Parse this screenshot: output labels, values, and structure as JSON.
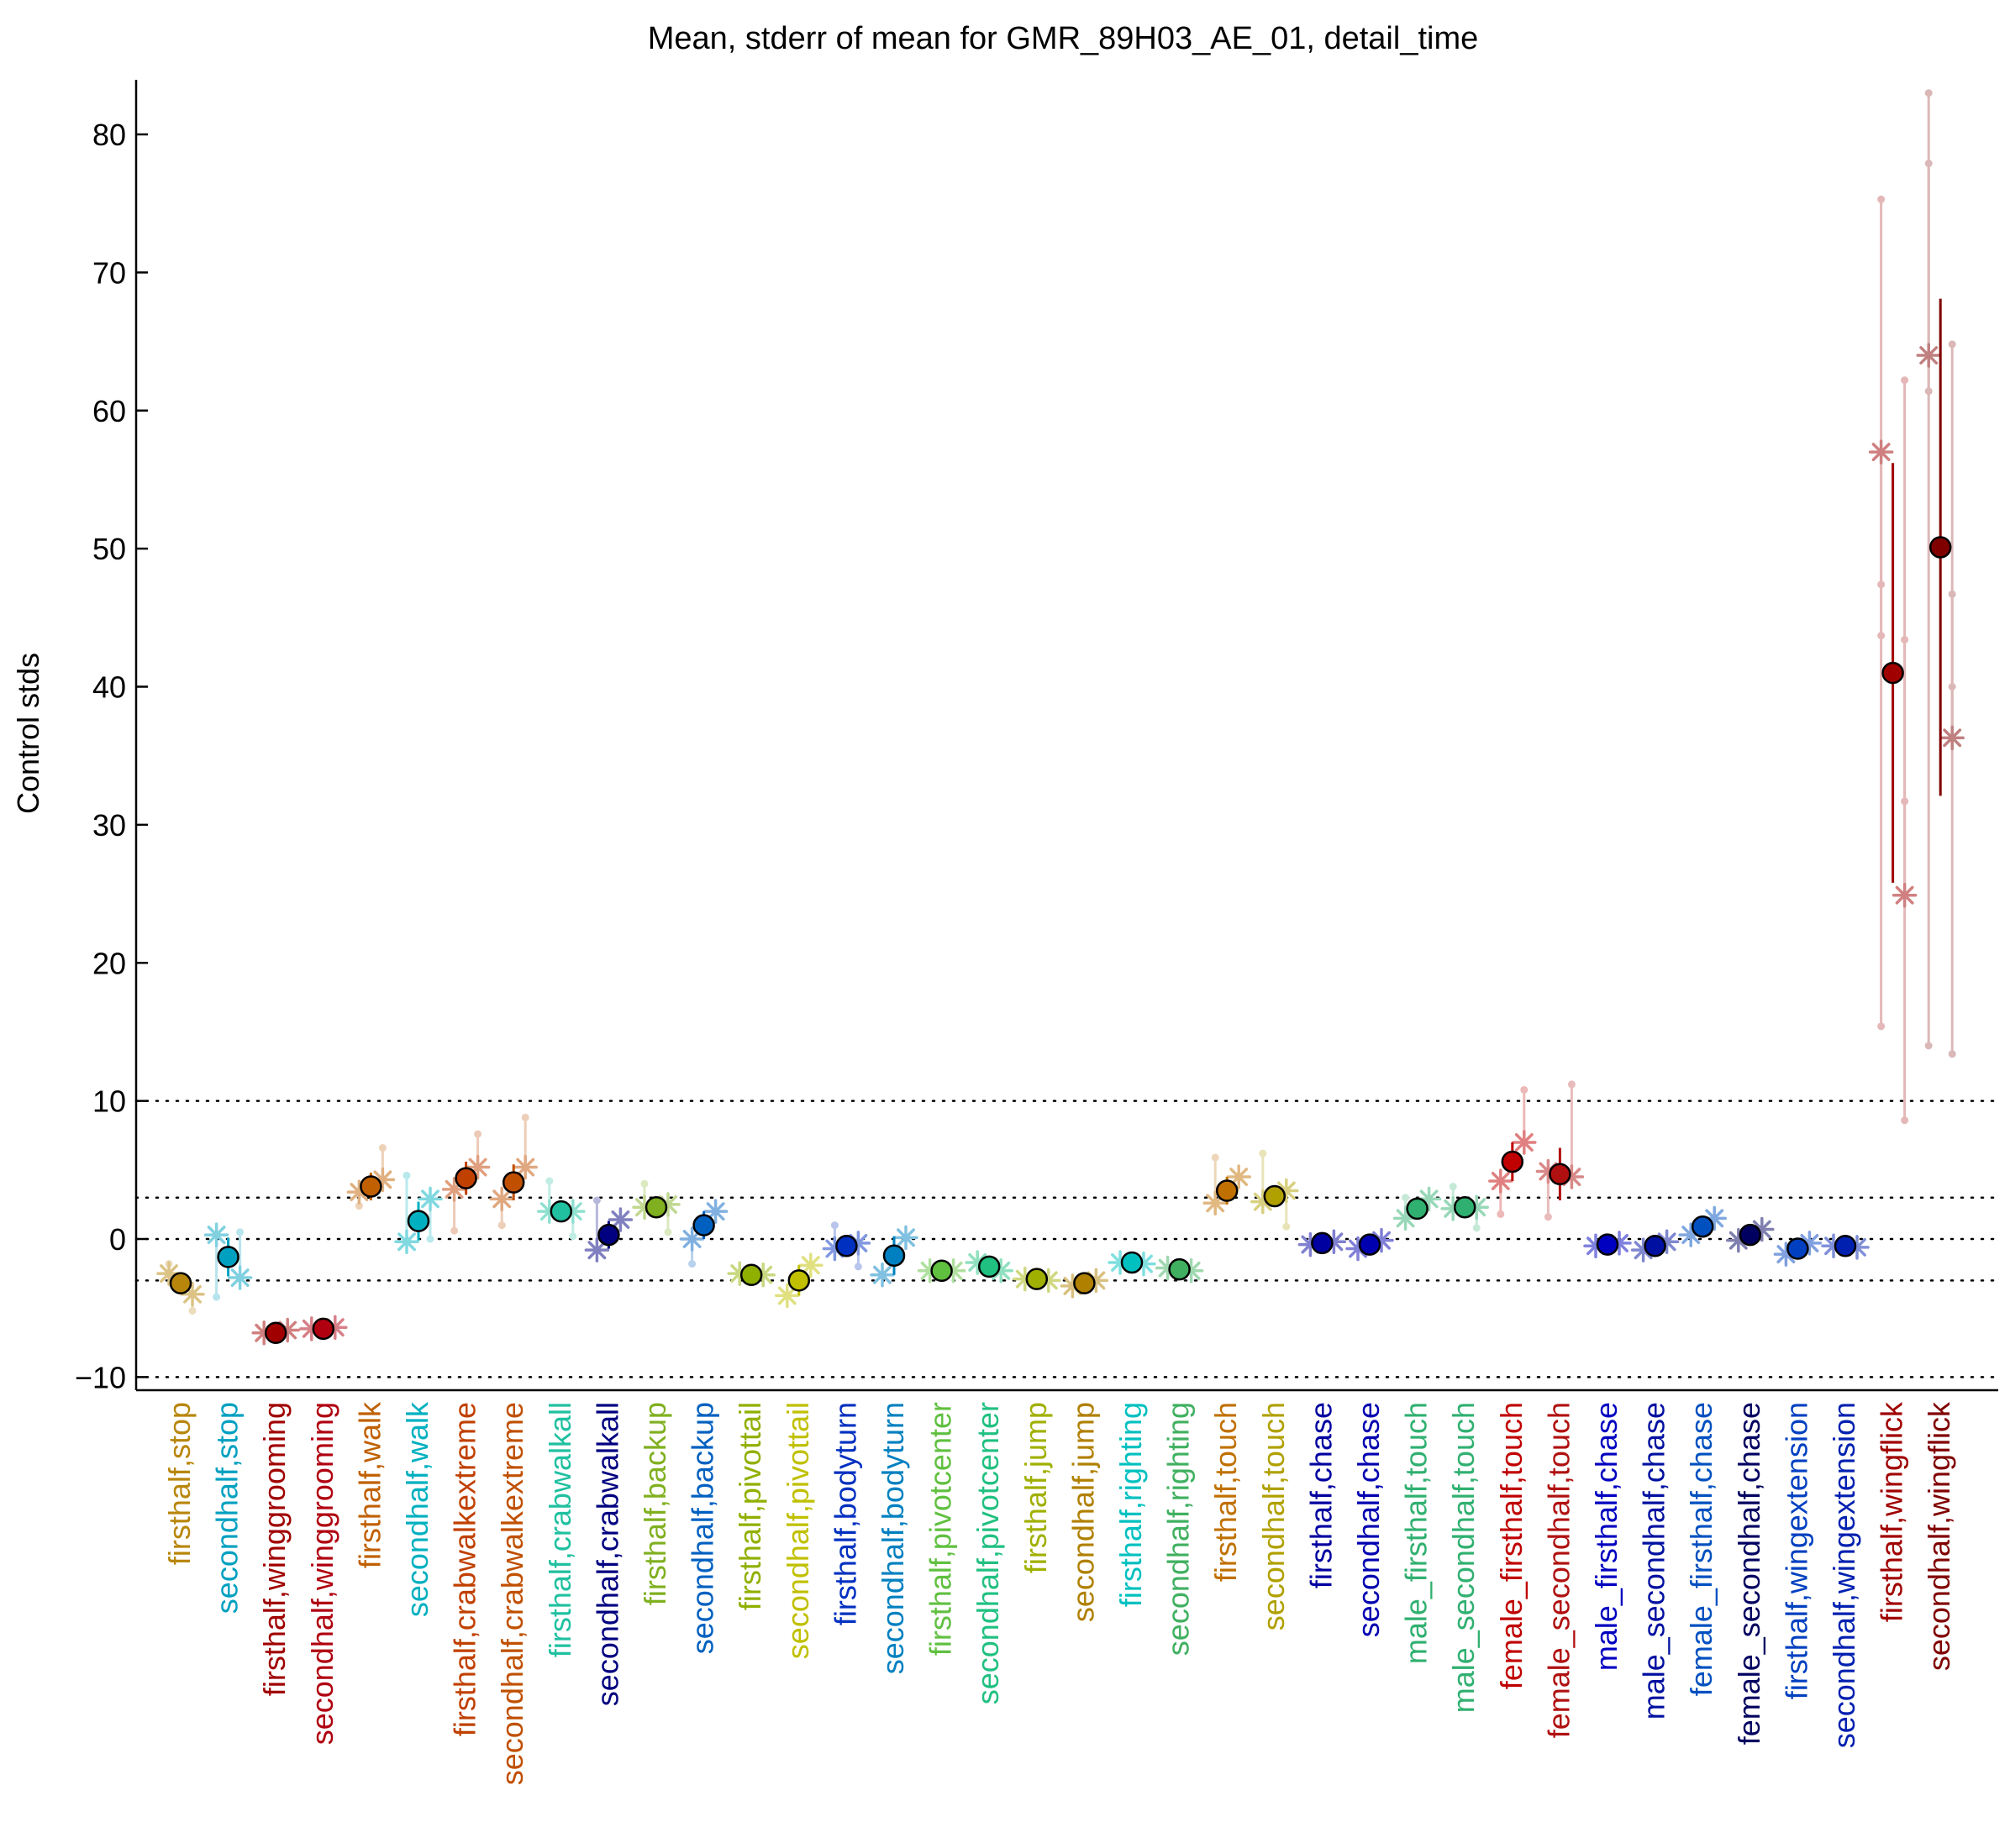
{
  "chart_data": {
    "type": "scatter",
    "title": "Mean, stderr of mean for GMR_89H03_AE_01, detail_time",
    "ylabel": "Control stds",
    "xlabel": "",
    "ylim": [
      -11,
      84
    ],
    "yticks": [
      -10,
      0,
      10,
      20,
      30,
      40,
      50,
      60,
      70,
      80
    ],
    "ytick_labels": [
      "−10",
      "0",
      "10",
      "20",
      "30",
      "40",
      "50",
      "60",
      "70",
      "80"
    ],
    "reference_lines": [
      -10,
      -3,
      0,
      3,
      10
    ],
    "grid": false,
    "legend": "none",
    "categories": [
      {
        "label": "firsthalf,stop",
        "color": "#b8860b",
        "mean": -3.2,
        "sem": 0.6,
        "stars": [
          -2.5,
          -4.0
        ],
        "dots": [
          -1.8,
          -5.2
        ]
      },
      {
        "label": "secondhalf,stop",
        "color": "#00a0c0",
        "mean": -1.3,
        "sem": 1.4,
        "stars": [
          0.3,
          -2.8
        ],
        "dots": [
          -4.2,
          0.5
        ]
      },
      {
        "label": "firsthalf,winggrooming",
        "color": "#a00000",
        "mean": -6.8,
        "sem": 0.2,
        "stars": [
          -6.8,
          -6.6
        ],
        "dots": []
      },
      {
        "label": "secondhalf,winggrooming",
        "color": "#b00010",
        "mean": -6.5,
        "sem": 0.2,
        "stars": [
          -6.5,
          -6.4
        ],
        "dots": []
      },
      {
        "label": "firsthalf,walk",
        "color": "#c06000",
        "mean": 3.8,
        "sem": 1.0,
        "stars": [
          3.4,
          4.3
        ],
        "dots": [
          2.4,
          6.6
        ]
      },
      {
        "label": "secondhalf,walk",
        "color": "#00b0c0",
        "mean": 1.3,
        "sem": 1.4,
        "stars": [
          -0.2,
          2.9
        ],
        "dots": [
          4.6,
          0.0
        ]
      },
      {
        "label": "firsthalf,crabwalkextreme",
        "color": "#c04000",
        "mean": 4.4,
        "sem": 1.2,
        "stars": [
          3.6,
          5.2
        ],
        "dots": [
          0.6,
          7.6
        ]
      },
      {
        "label": "secondhalf,crabwalkextreme",
        "color": "#c05000",
        "mean": 4.1,
        "sem": 1.3,
        "stars": [
          2.9,
          5.2
        ],
        "dots": [
          1.0,
          8.8
        ]
      },
      {
        "label": "firsthalf,crabwalkall",
        "color": "#20c0a0",
        "mean": 2.0,
        "sem": 0.3,
        "stars": [
          2.0,
          2.0
        ],
        "dots": [
          4.2,
          0.2
        ]
      },
      {
        "label": "secondhalf,crabwalkall",
        "color": "#000080",
        "mean": 0.3,
        "sem": 1.0,
        "stars": [
          -0.8,
          1.4
        ],
        "dots": [
          2.8
        ]
      },
      {
        "label": "firsthalf,backup",
        "color": "#80b020",
        "mean": 2.3,
        "sem": 0.3,
        "stars": [
          2.3,
          2.5
        ],
        "dots": [
          4.0,
          0.5
        ]
      },
      {
        "label": "secondhalf,backup",
        "color": "#0060c0",
        "mean": 1.0,
        "sem": 1.0,
        "stars": [
          0.0,
          2.0
        ],
        "dots": [
          -1.8
        ]
      },
      {
        "label": "firsthalf,pivottail",
        "color": "#90b000",
        "mean": -2.6,
        "sem": 0.1,
        "stars": [
          -2.5,
          -2.6
        ],
        "dots": []
      },
      {
        "label": "secondhalf,pivottail",
        "color": "#c0c000",
        "mean": -3.0,
        "sem": 1.1,
        "stars": [
          -4.1,
          -1.9
        ],
        "dots": []
      },
      {
        "label": "firsthalf,bodyturn",
        "color": "#0030c0",
        "mean": -0.5,
        "sem": 0.2,
        "stars": [
          -0.7,
          -0.3
        ],
        "dots": [
          1.0,
          -2.0
        ]
      },
      {
        "label": "secondhalf,bodyturn",
        "color": "#0080c0",
        "mean": -1.2,
        "sem": 1.4,
        "stars": [
          -2.6,
          0.1
        ],
        "dots": []
      },
      {
        "label": "firsthalf,pivotcenter",
        "color": "#60c040",
        "mean": -2.3,
        "sem": 0.1,
        "stars": [
          -2.3,
          -2.3
        ],
        "dots": []
      },
      {
        "label": "secondhalf,pivotcenter",
        "color": "#20c080",
        "mean": -2.0,
        "sem": 0.3,
        "stars": [
          -1.7,
          -2.3
        ],
        "dots": []
      },
      {
        "label": "firsthalf,jump",
        "color": "#a0b000",
        "mean": -2.9,
        "sem": 0.1,
        "stars": [
          -2.9,
          -3.0
        ],
        "dots": []
      },
      {
        "label": "secondhalf,jump",
        "color": "#b08000",
        "mean": -3.2,
        "sem": 0.2,
        "stars": [
          -3.4,
          -3.0
        ],
        "dots": []
      },
      {
        "label": "firsthalf,righting",
        "color": "#00c0c0",
        "mean": -1.7,
        "sem": 0.1,
        "stars": [
          -1.7,
          -1.8
        ],
        "dots": []
      },
      {
        "label": "secondhalf,righting",
        "color": "#40b060",
        "mean": -2.2,
        "sem": 0.1,
        "stars": [
          -2.1,
          -2.3
        ],
        "dots": []
      },
      {
        "label": "firsthalf,touch",
        "color": "#c07000",
        "mean": 3.5,
        "sem": 1.0,
        "stars": [
          2.6,
          4.5
        ],
        "dots": [
          5.9
        ]
      },
      {
        "label": "secondhalf,touch",
        "color": "#b0a000",
        "mean": 3.1,
        "sem": 0.4,
        "stars": [
          2.7,
          3.5
        ],
        "dots": [
          6.2,
          0.9
        ]
      },
      {
        "label": "firsthalf,chase",
        "color": "#0000a0",
        "mean": -0.3,
        "sem": 0.1,
        "stars": [
          -0.4,
          -0.2
        ],
        "dots": []
      },
      {
        "label": "secondhalf,chase",
        "color": "#0000b0",
        "mean": -0.4,
        "sem": 0.3,
        "stars": [
          -0.7,
          -0.1
        ],
        "dots": []
      },
      {
        "label": "male_firsthalf,touch",
        "color": "#30b070",
        "mean": 2.2,
        "sem": 0.8,
        "stars": [
          1.5,
          2.9
        ],
        "dots": [
          3.0
        ]
      },
      {
        "label": "male_secondhalf,touch",
        "color": "#30b070",
        "mean": 2.3,
        "sem": 0.1,
        "stars": [
          2.2,
          2.3
        ],
        "dots": [
          3.8,
          0.8
        ]
      },
      {
        "label": "female_firsthalf,touch",
        "color": "#c00000",
        "mean": 5.6,
        "sem": 1.4,
        "stars": [
          4.2,
          7.0
        ],
        "dots": [
          1.8,
          10.8
        ]
      },
      {
        "label": "female_secondhalf,touch",
        "color": "#b01010",
        "mean": 4.7,
        "sem": 1.9,
        "stars": [
          4.9,
          4.5
        ],
        "dots": [
          1.6,
          11.2
        ]
      },
      {
        "label": "male_firsthalf,chase",
        "color": "#0000c0",
        "mean": -0.4,
        "sem": 0.2,
        "stars": [
          -0.5,
          -0.3
        ],
        "dots": []
      },
      {
        "label": "male_secondhalf,chase",
        "color": "#0010a0",
        "mean": -0.5,
        "sem": 0.3,
        "stars": [
          -0.8,
          -0.2
        ],
        "dots": []
      },
      {
        "label": "female_firsthalf,chase",
        "color": "#0050c0",
        "mean": 0.9,
        "sem": 0.6,
        "stars": [
          0.3,
          1.5
        ],
        "dots": []
      },
      {
        "label": "female_secondhalf,chase",
        "color": "#000060",
        "mean": 0.3,
        "sem": 0.4,
        "stars": [
          -0.1,
          0.7
        ],
        "dots": []
      },
      {
        "label": "firsthalf,wingextension",
        "color": "#0040c0",
        "mean": -0.7,
        "sem": 0.4,
        "stars": [
          -1.1,
          -0.3
        ],
        "dots": []
      },
      {
        "label": "secondhalf,wingextension",
        "color": "#0020b0",
        "mean": -0.5,
        "sem": 0.1,
        "stars": [
          -0.5,
          -0.6
        ],
        "dots": []
      },
      {
        "label": "firsthalf,wingflick",
        "color": "#a00000",
        "mean": 41.0,
        "sem": 15.2,
        "stars": [
          57.0,
          24.9
        ],
        "dots": [
          75.3,
          62.2,
          47.4,
          43.4,
          43.7,
          31.7,
          15.4,
          8.6
        ]
      },
      {
        "label": "secondhalf,wingflick",
        "color": "#800000",
        "mean": 50.1,
        "sem": 18.0,
        "stars": [
          64.0,
          36.3
        ],
        "dots": [
          83.0,
          64.8,
          61.4,
          46.7,
          77.9,
          40.0,
          14.0,
          13.4
        ]
      }
    ]
  }
}
